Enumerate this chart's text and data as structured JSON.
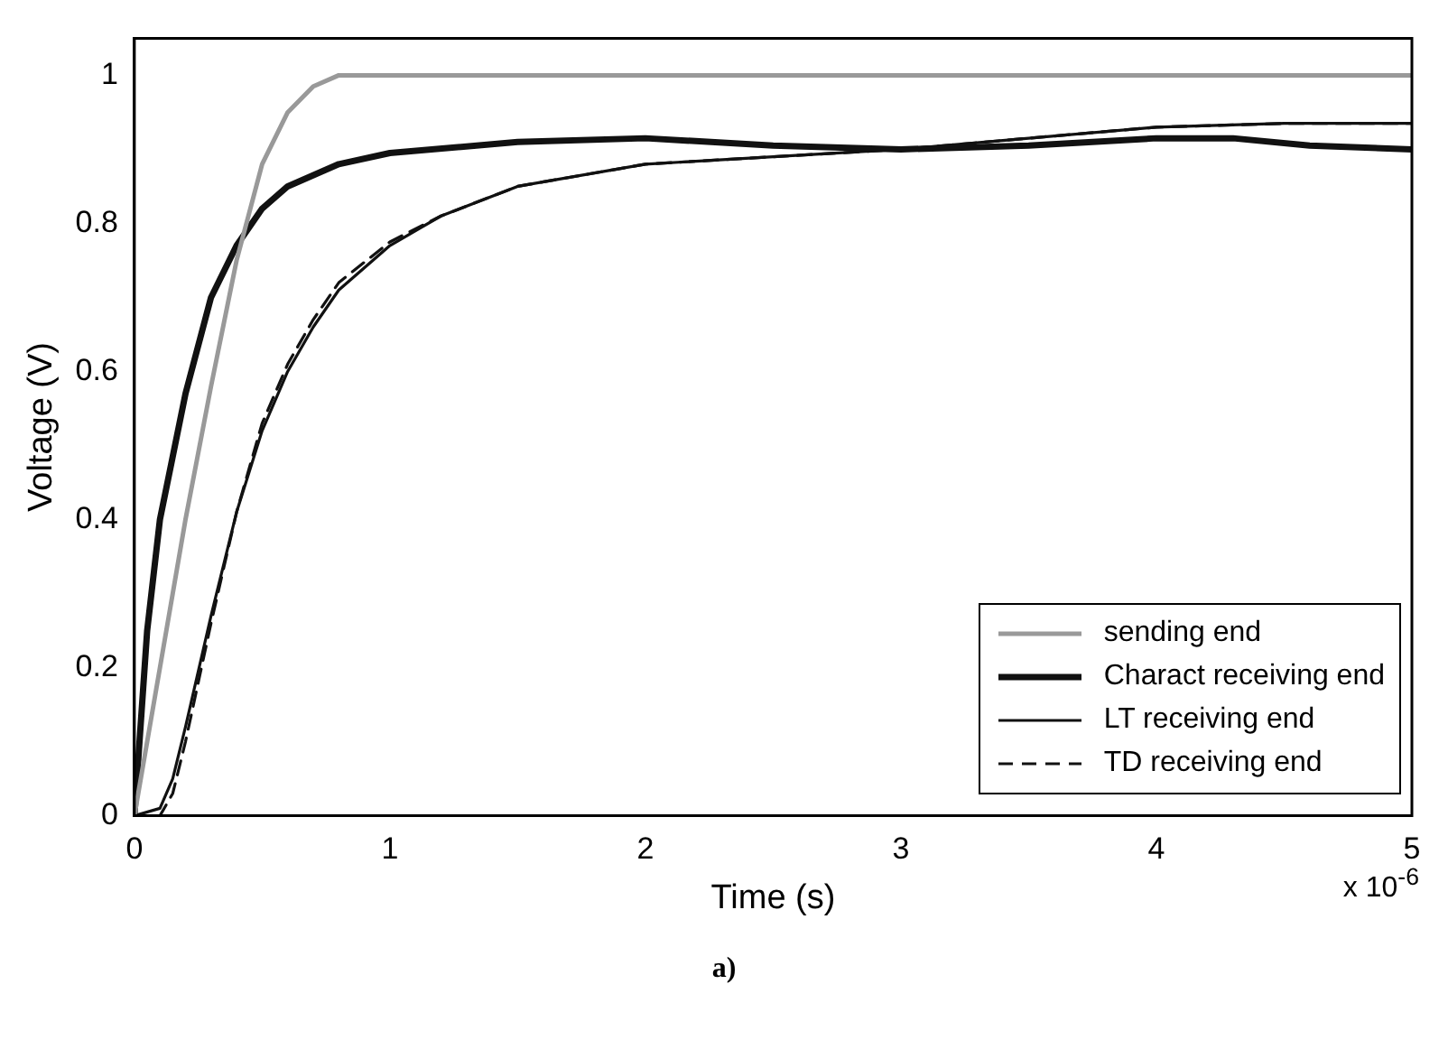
{
  "chart_data": {
    "type": "line",
    "xlabel": "Time (s)",
    "ylabel": "Voltage (V)",
    "xlim": [
      0,
      5
    ],
    "xticks": [
      0,
      1,
      2,
      3,
      4,
      5
    ],
    "ylim": [
      0,
      1.05
    ],
    "yticks": [
      0,
      0.2,
      0.4,
      0.6,
      0.8,
      1
    ],
    "grid": false,
    "legend": "bottom right",
    "marker": "none",
    "annotations": [
      "x 10$^{-6}$",
      "a)"
    ],
    "series": [
      {
        "name": "sending end",
        "color": "#999999",
        "line_style": "solid",
        "x": [
          0,
          0.1,
          0.2,
          0.3,
          0.4,
          0.5,
          0.6,
          0.7,
          0.8,
          1,
          5
        ],
        "values": [
          0,
          0.2,
          0.4,
          0.58,
          0.75,
          0.88,
          0.95,
          0.985,
          1,
          1,
          1
        ]
      },
      {
        "name": "Charact receiving end",
        "color": "#111111",
        "line_style": "solid",
        "x": [
          0,
          0.05,
          0.1,
          0.2,
          0.3,
          0.4,
          0.5,
          0.6,
          0.8,
          1,
          1.5,
          2,
          2.5,
          3,
          3.5,
          4,
          4.3,
          4.6,
          5
        ],
        "values": [
          0,
          0.25,
          0.4,
          0.57,
          0.7,
          0.77,
          0.82,
          0.85,
          0.88,
          0.895,
          0.91,
          0.915,
          0.905,
          0.9,
          0.905,
          0.915,
          0.915,
          0.905,
          0.9
        ]
      },
      {
        "name": "LT receiving end",
        "color": "#111111",
        "line_style": "solid",
        "x": [
          0,
          0.1,
          0.15,
          0.2,
          0.3,
          0.4,
          0.5,
          0.6,
          0.7,
          0.8,
          1,
          1.2,
          1.5,
          2,
          2.5,
          3,
          3.5,
          4,
          4.5,
          5
        ],
        "values": [
          0,
          0.01,
          0.05,
          0.12,
          0.27,
          0.41,
          0.52,
          0.6,
          0.66,
          0.71,
          0.77,
          0.81,
          0.85,
          0.88,
          0.89,
          0.9,
          0.915,
          0.93,
          0.935,
          0.935
        ]
      },
      {
        "name": "TD receiving end",
        "color": "#111111",
        "line_style": "dashed",
        "x": [
          0,
          0.1,
          0.15,
          0.2,
          0.3,
          0.4,
          0.5,
          0.6,
          0.7,
          0.8,
          1,
          1.2,
          1.5,
          2,
          2.5,
          3,
          3.5,
          4,
          4.5,
          5
        ],
        "values": [
          0,
          0,
          0.03,
          0.1,
          0.26,
          0.41,
          0.53,
          0.61,
          0.67,
          0.72,
          0.775,
          0.81,
          0.85,
          0.88,
          0.89,
          0.9,
          0.915,
          0.93,
          0.935,
          0.935
        ]
      }
    ]
  }
}
